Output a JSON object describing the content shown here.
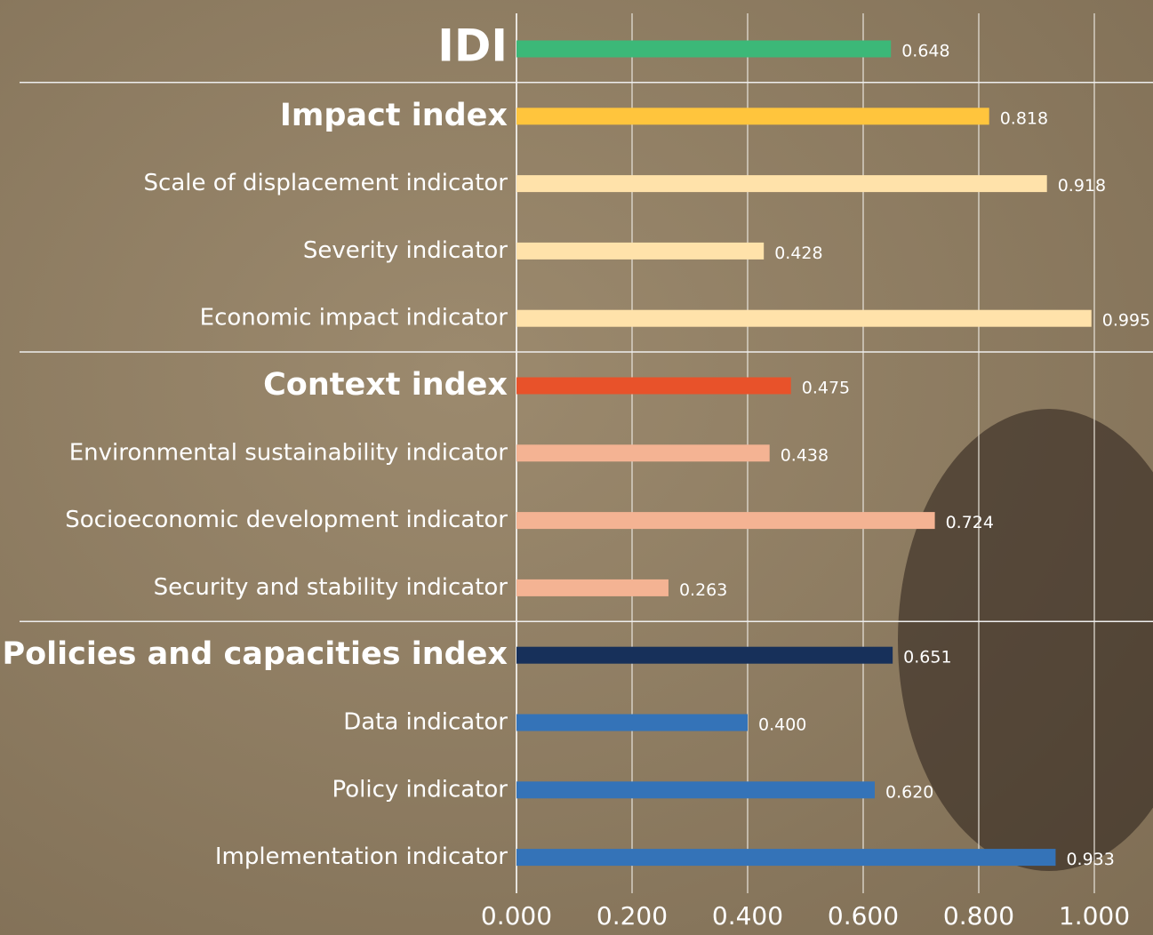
{
  "chart_data": {
    "type": "bar",
    "orientation": "horizontal",
    "categories": [
      "IDI",
      "Impact index",
      "Scale of displacement indicator",
      "Severity indicator",
      "Economic impact indicator",
      "Context index",
      "Environmental sustainability indicator",
      "Socioeconomic development indicator",
      "Security and stability indicator",
      "Policies and capacities index",
      "Data indicator",
      "Policy indicator",
      "Implementation indicator"
    ],
    "values": [
      0.648,
      0.818,
      0.918,
      0.428,
      0.995,
      0.475,
      0.438,
      0.724,
      0.263,
      0.651,
      0.4,
      0.62,
      0.933
    ],
    "value_labels": [
      "0.648",
      "0.818",
      "0.918",
      "0.428",
      "0.995",
      "0.475",
      "0.438",
      "0.724",
      "0.263",
      "0.651",
      "0.400",
      "0.620",
      "0.933"
    ],
    "colors": [
      "#3cb878",
      "#ffc53d",
      "#ffe2aa",
      "#ffe2aa",
      "#ffe2aa",
      "#e8522a",
      "#f4b393",
      "#f4b393",
      "#f4b393",
      "#17305a",
      "#3473b8",
      "#3473b8",
      "#3473b8"
    ],
    "emphasis": [
      true,
      true,
      false,
      false,
      false,
      true,
      false,
      false,
      false,
      true,
      false,
      false,
      false
    ],
    "xlim": [
      0,
      1
    ],
    "xticks": [
      {
        "value": 0,
        "label": "0.000"
      },
      {
        "value": 0.2,
        "label": "0.200"
      },
      {
        "value": 0.4,
        "label": "0.400"
      },
      {
        "value": 0.6,
        "label": "0.600"
      },
      {
        "value": 0.8,
        "label": "0.800"
      },
      {
        "value": 1,
        "label": "1.000"
      }
    ],
    "grid": true
  }
}
